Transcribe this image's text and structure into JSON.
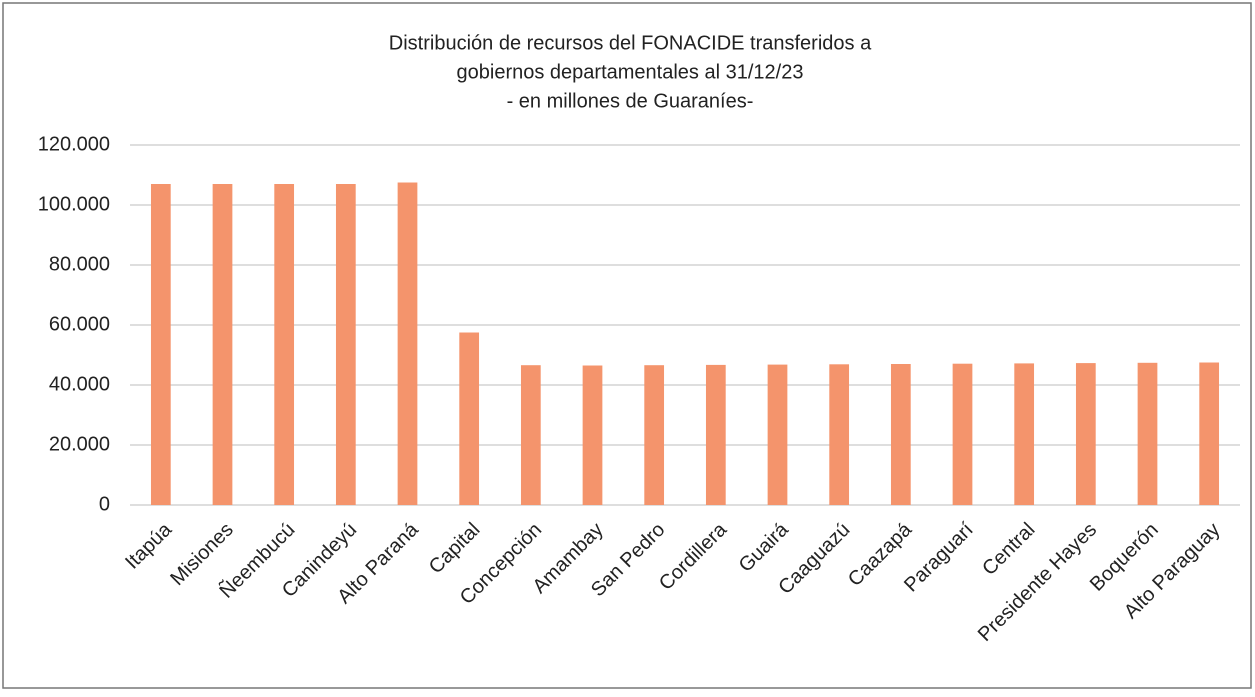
{
  "chart_data": {
    "type": "bar",
    "title": [
      "Distribución de recursos del FONACIDE transferidos a",
      "gobiernos departamentales al 31/12/23",
      "- en millones de Guaraníes-"
    ],
    "categories": [
      "Itapúa",
      "Misiones",
      "Ñeembucú",
      "Canindeyú",
      "Alto Paraná",
      "Capital",
      "Concepción",
      "Amambay",
      "San Pedro",
      "Cordillera",
      "Guairá",
      "Caaguazú",
      "Caazapá",
      "Paraguarí",
      "Central",
      "Presidente Hayes",
      "Boquerón",
      "Alto Paraguay"
    ],
    "values": [
      107000,
      107000,
      107000,
      107000,
      107500,
      57500,
      46600,
      46500,
      46600,
      46700,
      46800,
      46900,
      47000,
      47100,
      47200,
      47300,
      47400,
      47500
    ],
    "color": "#f4946c",
    "ylim": [
      0,
      120000
    ],
    "yticks": [
      0,
      {
        "value": 20000,
        "label": "20.000"
      },
      {
        "value": 40000,
        "label": "40.000"
      },
      {
        "value": 60000,
        "label": "60.000"
      },
      {
        "value": 80000,
        "label": "80.000"
      },
      {
        "value": 100000,
        "label": "100.000"
      },
      {
        "value": 120000,
        "label": "120.000"
      }
    ],
    "grid": true
  }
}
